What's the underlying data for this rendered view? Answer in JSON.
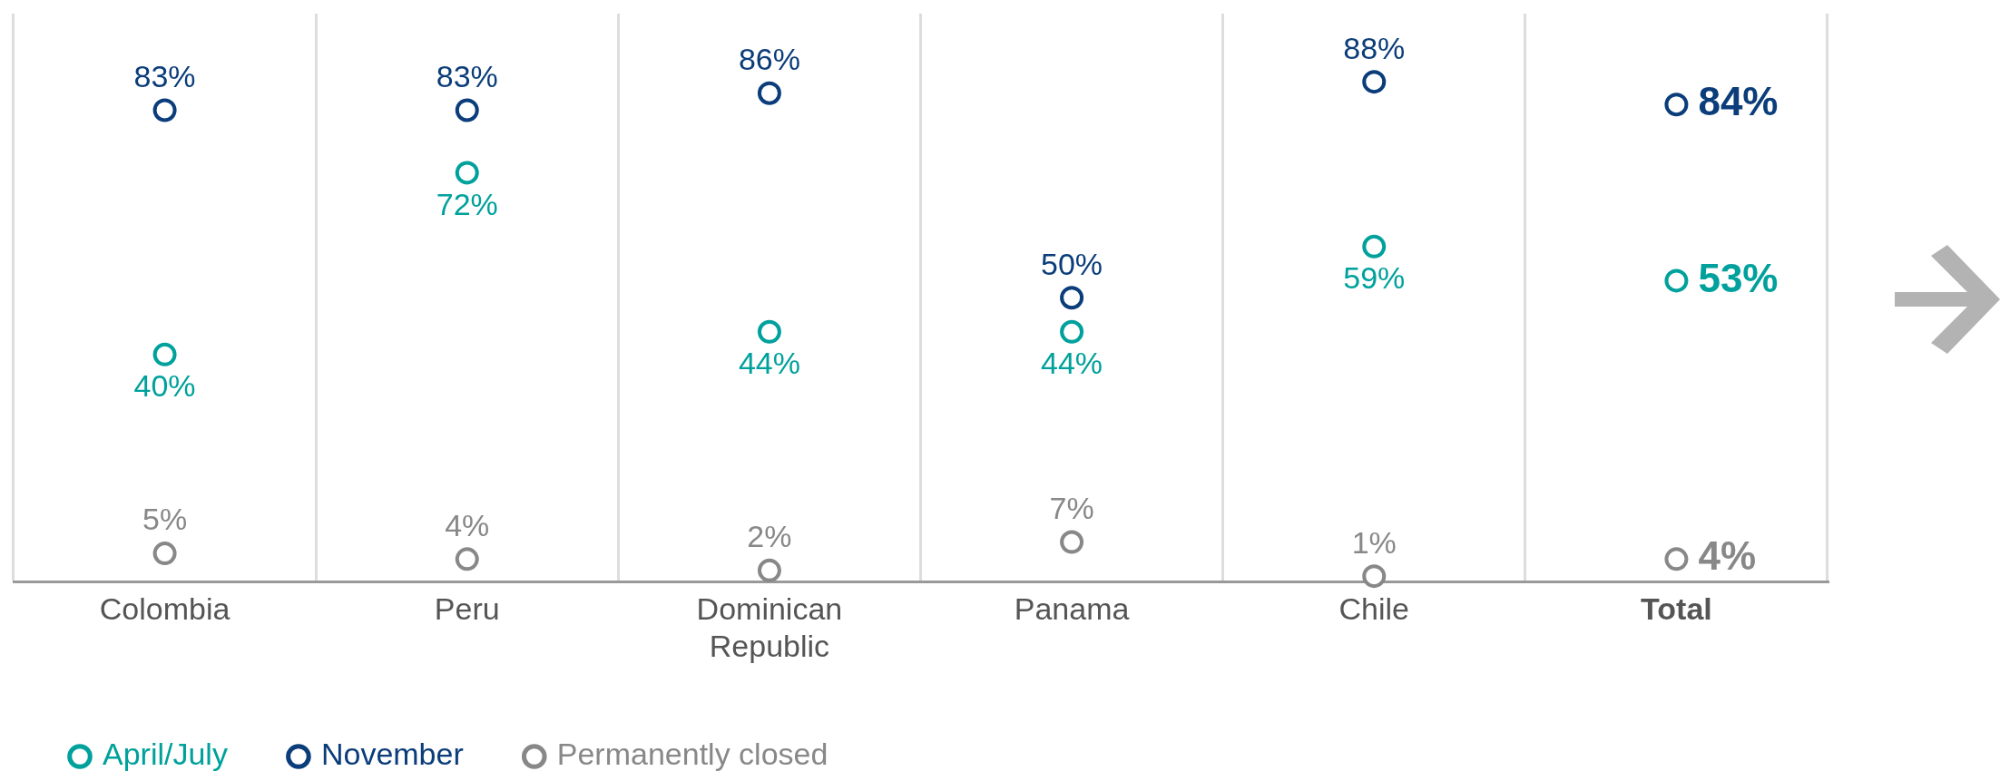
{
  "chart_data": {
    "type": "scatter",
    "categories": [
      "Colombia",
      "Peru",
      "Dominican Republic",
      "Panama",
      "Chile",
      "Total"
    ],
    "series": [
      {
        "name": "April/July",
        "color": "#00a19c",
        "values": [
          40,
          72,
          44,
          44,
          59,
          53
        ],
        "value_labels": [
          "40%",
          "72%",
          "44%",
          "44%",
          "59%",
          "53%"
        ]
      },
      {
        "name": "November",
        "color": "#0b3d7a",
        "values": [
          83,
          83,
          86,
          50,
          88,
          84
        ],
        "value_labels": [
          "83%",
          "83%",
          "86%",
          "50%",
          "88%",
          "84%"
        ]
      },
      {
        "name": "Permanently closed",
        "color": "#888888",
        "values": [
          5,
          4,
          2,
          7,
          1,
          4
        ],
        "value_labels": [
          "5%",
          "4%",
          "2%",
          "7%",
          "1%",
          "4%"
        ]
      }
    ],
    "tick_labels": "x",
    "grid": "x",
    "legend": "bottom left",
    "marker": "circle"
  }
}
